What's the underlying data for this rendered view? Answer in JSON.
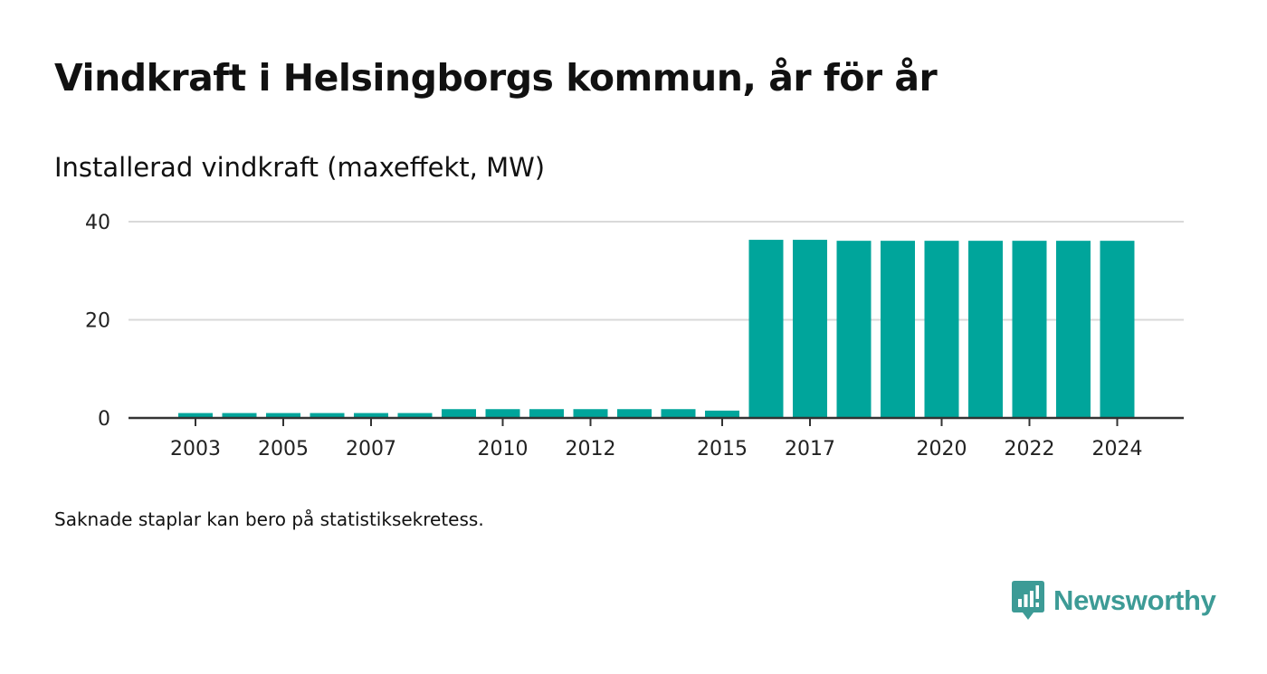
{
  "title": "Vindkraft i Helsingborgs kommun, år för år",
  "subtitle": "Installerad vindkraft (maxeffekt, MW)",
  "note": "Saknade staplar kan bero på statistiksekretess.",
  "brand": {
    "name": "Newsworthy",
    "color": "#3d9b96",
    "icon": "newsworthy-logo-icon"
  },
  "colors": {
    "bar": "#00a59b",
    "grid": "#d9d9d9",
    "axis": "#333333"
  },
  "chart_data": {
    "type": "bar",
    "title": "Installerad vindkraft (maxeffekt, MW)",
    "xlabel": "",
    "ylabel": "",
    "ylim": [
      0,
      40
    ],
    "yticks": [
      0,
      20,
      40
    ],
    "grid": true,
    "legend": "none",
    "categories": [
      2003,
      2004,
      2005,
      2006,
      2007,
      2008,
      2009,
      2010,
      2011,
      2012,
      2013,
      2014,
      2015,
      2016,
      2017,
      2018,
      2019,
      2020,
      2021,
      2022,
      2023,
      2024
    ],
    "values": [
      1.0,
      1.0,
      1.0,
      1.0,
      1.0,
      1.0,
      1.8,
      1.8,
      1.8,
      1.8,
      1.8,
      1.8,
      1.5,
      36.3,
      36.3,
      36.1,
      36.1,
      36.1,
      36.1,
      36.1,
      36.1,
      36.1
    ],
    "xtick_labels": [
      2003,
      2005,
      2007,
      2010,
      2012,
      2015,
      2017,
      2020,
      2022,
      2024
    ]
  }
}
